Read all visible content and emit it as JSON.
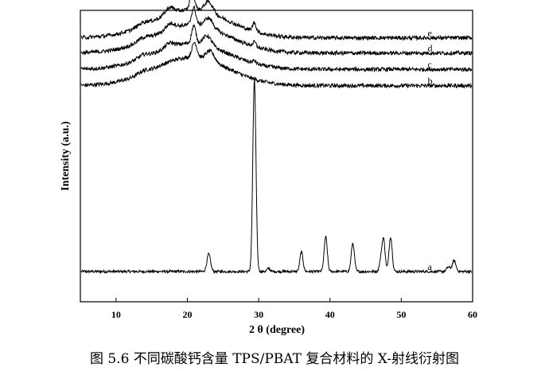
{
  "caption": "图 5.6  不同碳酸钙含量 TPS/PBAT 复合材料的 X-射线衍射图",
  "chart_data": {
    "type": "line",
    "xlabel": "2 θ (degree)",
    "ylabel": "Intensity (a.u.)",
    "xlim": [
      5,
      60
    ],
    "xticks": [
      10,
      20,
      30,
      40,
      50,
      60
    ],
    "y_tick_labels": false,
    "grid": false,
    "series": [
      {
        "name": "a",
        "baseline": 0.0,
        "peaks": [
          {
            "x": 23.0,
            "h": 0.08,
            "w": 0.25
          },
          {
            "x": 29.4,
            "h": 0.88,
            "w": 0.22
          },
          {
            "x": 31.4,
            "h": 0.015,
            "w": 0.2
          },
          {
            "x": 36.0,
            "h": 0.09,
            "w": 0.22
          },
          {
            "x": 39.4,
            "h": 0.16,
            "w": 0.22
          },
          {
            "x": 43.2,
            "h": 0.13,
            "w": 0.22
          },
          {
            "x": 47.1,
            "h": 0.04,
            "w": 0.2
          },
          {
            "x": 47.5,
            "h": 0.15,
            "w": 0.22
          },
          {
            "x": 48.5,
            "h": 0.16,
            "w": 0.22
          },
          {
            "x": 56.6,
            "h": 0.02,
            "w": 0.25
          },
          {
            "x": 57.4,
            "h": 0.05,
            "w": 0.25
          }
        ]
      },
      {
        "name": "b",
        "baseline": 0.855,
        "peaks": [
          {
            "x": 13.8,
            "h": 0.012,
            "w": 0.8
          },
          {
            "x": 21.0,
            "h": 0.07,
            "w": 0.35
          },
          {
            "x": 23.2,
            "h": 0.045,
            "w": 0.6
          },
          {
            "x": 20.5,
            "h": 0.13,
            "w": 5.2
          }
        ]
      },
      {
        "name": "c",
        "baseline": 0.93,
        "peaks": [
          {
            "x": 13.8,
            "h": 0.015,
            "w": 0.8
          },
          {
            "x": 17.5,
            "h": 0.02,
            "w": 0.6
          },
          {
            "x": 20.9,
            "h": 0.08,
            "w": 0.3
          },
          {
            "x": 22.8,
            "h": 0.045,
            "w": 0.6
          },
          {
            "x": 29.4,
            "h": 0.012,
            "w": 0.25
          },
          {
            "x": 20.5,
            "h": 0.12,
            "w": 5.2
          }
        ]
      },
      {
        "name": "d",
        "baseline": 1.005,
        "peaks": [
          {
            "x": 13.8,
            "h": 0.015,
            "w": 0.8
          },
          {
            "x": 17.6,
            "h": 0.025,
            "w": 0.6
          },
          {
            "x": 20.9,
            "h": 0.08,
            "w": 0.3
          },
          {
            "x": 23.0,
            "h": 0.045,
            "w": 0.6
          },
          {
            "x": 29.4,
            "h": 0.02,
            "w": 0.25
          },
          {
            "x": 20.5,
            "h": 0.13,
            "w": 5.2
          }
        ]
      },
      {
        "name": "e",
        "baseline": 1.075,
        "peaks": [
          {
            "x": 13.8,
            "h": 0.015,
            "w": 0.8
          },
          {
            "x": 17.5,
            "h": 0.03,
            "w": 0.6
          },
          {
            "x": 20.7,
            "h": 0.09,
            "w": 0.3
          },
          {
            "x": 23.0,
            "h": 0.05,
            "w": 0.6
          },
          {
            "x": 29.4,
            "h": 0.04,
            "w": 0.25
          },
          {
            "x": 20.5,
            "h": 0.13,
            "w": 5.2
          }
        ]
      }
    ]
  }
}
